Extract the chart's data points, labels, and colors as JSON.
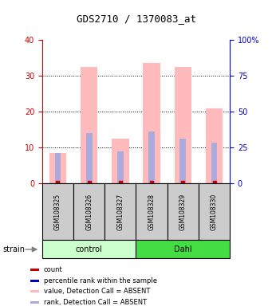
{
  "title": "GDS2710 / 1370083_at",
  "samples": [
    "GSM108325",
    "GSM108326",
    "GSM108327",
    "GSM108328",
    "GSM108329",
    "GSM108330"
  ],
  "groups": [
    "control",
    "control",
    "control",
    "Dahl",
    "Dahl",
    "Dahl"
  ],
  "group_colors": {
    "control": "#ccffcc",
    "Dahl": "#44dd44"
  },
  "bar_heights_pink": [
    8.5,
    32.5,
    12.5,
    33.5,
    32.5,
    21.0
  ],
  "bar_heights_blue": [
    8.5,
    14.0,
    9.0,
    14.5,
    12.5,
    11.5
  ],
  "pink_color": "#ffbbbb",
  "blue_color": "#aaaadd",
  "left_axis_color": "#cc0000",
  "right_axis_color": "#0000cc",
  "ylim_left": [
    0,
    40
  ],
  "ylim_right": [
    0,
    100
  ],
  "yticks_left": [
    0,
    10,
    20,
    30,
    40
  ],
  "yticks_right": [
    0,
    25,
    50,
    75,
    100
  ],
  "ytick_labels_right": [
    "0",
    "25",
    "50",
    "75",
    "100%"
  ],
  "grid_yticks": [
    10,
    20,
    30
  ],
  "sample_box_color": "#cccccc",
  "legend_items": [
    {
      "color": "#cc0000",
      "label": "count"
    },
    {
      "color": "#0000cc",
      "label": "percentile rank within the sample"
    },
    {
      "color": "#ffbbbb",
      "label": "value, Detection Call = ABSENT"
    },
    {
      "color": "#aaaadd",
      "label": "rank, Detection Call = ABSENT"
    }
  ],
  "fig_width": 3.41,
  "fig_height": 3.84,
  "dpi": 100
}
